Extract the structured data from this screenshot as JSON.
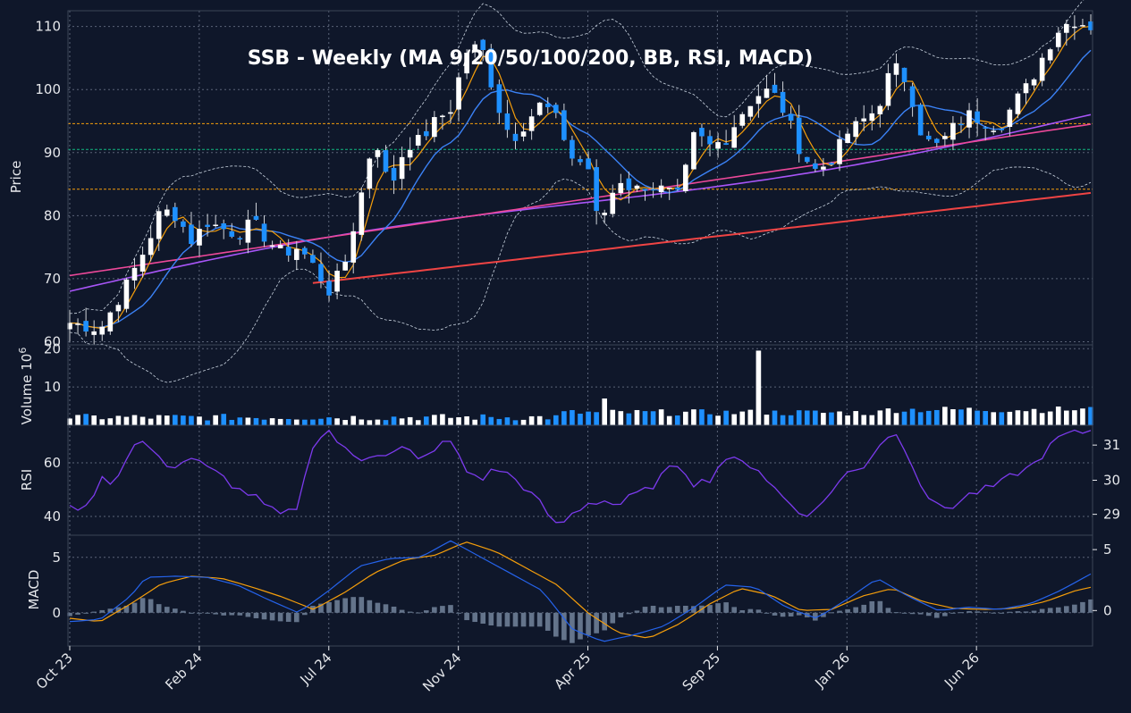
{
  "colors": {
    "background": "#0f172a",
    "frame": "#3b4457",
    "grid": "#5b6478",
    "up": "#ffffff",
    "down": "#1e90ff",
    "ma9": "#f59e0b",
    "ma20": "#3b82f6",
    "ma50": "#a855f7",
    "ma100": "#ec4899",
    "ma200": "#ef4444",
    "bb": "#cbd5e1",
    "rsi": "#7c3aed",
    "macd": "#2563eb",
    "signal": "#f59e0b",
    "hist": "#64748b",
    "hline_upper": "#f59e0b",
    "hline_mid": "#10b981",
    "hline_lower": "#f59e0b"
  },
  "chart_data": {
    "type": "candlestick",
    "title": "SSB  -  Weekly  (MA 9/20/50/100/200, BB, RSI, MACD)",
    "x_tick_labels": [
      "Oct 23",
      "Feb 24",
      "Jul 24",
      "Nov 24",
      "Apr 25",
      "Sep 25",
      "Jan 26",
      "Jun 26"
    ],
    "x_tick_index": [
      0,
      17,
      34,
      51,
      68,
      85,
      102,
      119
    ],
    "candle_count": 127,
    "price_panel": {
      "ylabel": "Price",
      "ylim": [
        59.5,
        112.5
      ],
      "yticks": [
        60,
        70,
        80,
        90,
        100,
        110
      ],
      "hlines": [
        94.6,
        90.5,
        84.2
      ],
      "ma_lines": [
        "MA 9",
        "MA 20",
        "MA 50",
        "MA 100",
        "MA 200"
      ],
      "close_anchors": [
        [
          0,
          63
        ],
        [
          4,
          62
        ],
        [
          7,
          68
        ],
        [
          10,
          75
        ],
        [
          12,
          81
        ],
        [
          14,
          80
        ],
        [
          16,
          76
        ],
        [
          18,
          79
        ],
        [
          20,
          78
        ],
        [
          22,
          77
        ],
        [
          24,
          79
        ],
        [
          26,
          76
        ],
        [
          28,
          74
        ],
        [
          30,
          75
        ],
        [
          32,
          72
        ],
        [
          34,
          68
        ],
        [
          36,
          72
        ],
        [
          38,
          82
        ],
        [
          40,
          93
        ],
        [
          42,
          84
        ],
        [
          44,
          91
        ],
        [
          46,
          92
        ],
        [
          48,
          95
        ],
        [
          50,
          97
        ],
        [
          52,
          106
        ],
        [
          54,
          107
        ],
        [
          56,
          98
        ],
        [
          58,
          92
        ],
        [
          60,
          95
        ],
        [
          62,
          98
        ],
        [
          64,
          95
        ],
        [
          66,
          89
        ],
        [
          68,
          88
        ],
        [
          69,
          80
        ],
        [
          70,
          80
        ],
        [
          72,
          86
        ],
        [
          74,
          84
        ],
        [
          76,
          85
        ],
        [
          78,
          84
        ],
        [
          80,
          83
        ],
        [
          82,
          93
        ],
        [
          84,
          91
        ],
        [
          86,
          92
        ],
        [
          88,
          96
        ],
        [
          90,
          99
        ],
        [
          92,
          100
        ],
        [
          94,
          96
        ],
        [
          96,
          90
        ],
        [
          98,
          87
        ],
        [
          100,
          89
        ],
        [
          102,
          93
        ],
        [
          104,
          95
        ],
        [
          106,
          97
        ],
        [
          108,
          104
        ],
        [
          110,
          101
        ],
        [
          112,
          92
        ],
        [
          114,
          91
        ],
        [
          116,
          94
        ],
        [
          118,
          96
        ],
        [
          120,
          95
        ],
        [
          122,
          94
        ],
        [
          124,
          98
        ],
        [
          126,
          101
        ],
        [
          128,
          106
        ],
        [
          130,
          110
        ],
        [
          132,
          111
        ],
        [
          134,
          110
        ]
      ]
    },
    "volume_panel": {
      "ylabel": "Volume  10^6",
      "ylim": [
        0,
        21
      ],
      "yticks": [
        10,
        20
      ],
      "spike": {
        "index": 90,
        "value": 19.5
      }
    },
    "rsi_panel": {
      "ylabel": "RSI",
      "ylim": [
        33,
        74
      ],
      "yticks": [
        40,
        60
      ],
      "right_yticks": [
        "29",
        "30",
        "31"
      ],
      "anchors": [
        [
          0,
          45
        ],
        [
          2,
          42
        ],
        [
          4,
          54
        ],
        [
          6,
          53
        ],
        [
          8,
          66
        ],
        [
          10,
          68
        ],
        [
          12,
          60
        ],
        [
          14,
          59
        ],
        [
          16,
          62
        ],
        [
          18,
          58
        ],
        [
          20,
          55
        ],
        [
          22,
          50
        ],
        [
          24,
          48
        ],
        [
          26,
          43
        ],
        [
          28,
          40
        ],
        [
          30,
          44
        ],
        [
          32,
          68
        ],
        [
          34,
          72
        ],
        [
          36,
          65
        ],
        [
          38,
          61
        ],
        [
          40,
          64
        ],
        [
          42,
          63
        ],
        [
          44,
          66
        ],
        [
          46,
          60
        ],
        [
          48,
          66
        ],
        [
          50,
          68
        ],
        [
          52,
          57
        ],
        [
          54,
          54
        ],
        [
          56,
          58
        ],
        [
          58,
          55
        ],
        [
          60,
          50
        ],
        [
          62,
          44
        ],
        [
          64,
          36
        ],
        [
          66,
          41
        ],
        [
          68,
          45
        ],
        [
          70,
          46
        ],
        [
          72,
          44
        ],
        [
          74,
          48
        ],
        [
          76,
          50
        ],
        [
          78,
          56
        ],
        [
          80,
          60
        ],
        [
          82,
          52
        ],
        [
          84,
          54
        ],
        [
          86,
          62
        ],
        [
          88,
          60
        ],
        [
          90,
          59
        ],
        [
          92,
          52
        ],
        [
          94,
          46
        ],
        [
          96,
          41
        ],
        [
          98,
          42
        ],
        [
          100,
          50
        ],
        [
          102,
          56
        ],
        [
          104,
          58
        ],
        [
          106,
          66
        ],
        [
          108,
          72
        ],
        [
          110,
          64
        ],
        [
          112,
          50
        ],
        [
          114,
          43
        ],
        [
          116,
          44
        ],
        [
          118,
          48
        ],
        [
          120,
          50
        ],
        [
          122,
          52
        ],
        [
          124,
          56
        ],
        [
          126,
          58
        ],
        [
          128,
          64
        ],
        [
          130,
          70
        ],
        [
          132,
          71
        ],
        [
          134,
          72
        ]
      ]
    },
    "macd_panel": {
      "ylabel": "MACD",
      "ylim": [
        -3,
        7
      ],
      "yticks": [
        0,
        5
      ],
      "right_yticks": [
        "0",
        "5"
      ],
      "macd_anchors": [
        [
          0,
          -0.8
        ],
        [
          4,
          -0.6
        ],
        [
          8,
          1.5
        ],
        [
          10,
          3.2
        ],
        [
          14,
          3.3
        ],
        [
          18,
          3.2
        ],
        [
          22,
          2.5
        ],
        [
          26,
          1.2
        ],
        [
          30,
          0
        ],
        [
          34,
          2
        ],
        [
          38,
          4.2
        ],
        [
          42,
          4.9
        ],
        [
          46,
          5.0
        ],
        [
          50,
          6.5
        ],
        [
          54,
          5.0
        ],
        [
          58,
          3.5
        ],
        [
          62,
          2.0
        ],
        [
          66,
          -1.5
        ],
        [
          70,
          -2.6
        ],
        [
          74,
          -2.0
        ],
        [
          78,
          -1.2
        ],
        [
          82,
          0.5
        ],
        [
          86,
          2.5
        ],
        [
          90,
          2.3
        ],
        [
          94,
          0.5
        ],
        [
          98,
          -0.5
        ],
        [
          102,
          1.2
        ],
        [
          106,
          3.1
        ],
        [
          110,
          1.5
        ],
        [
          114,
          0.2
        ],
        [
          118,
          0.5
        ],
        [
          122,
          0.3
        ],
        [
          126,
          0.8
        ],
        [
          130,
          2.0
        ],
        [
          134,
          3.5
        ]
      ],
      "signal_anchors": [
        [
          0,
          -0.5
        ],
        [
          4,
          -0.8
        ],
        [
          8,
          0.8
        ],
        [
          12,
          2.6
        ],
        [
          16,
          3.3
        ],
        [
          20,
          3.1
        ],
        [
          24,
          2.3
        ],
        [
          28,
          1.4
        ],
        [
          32,
          0.3
        ],
        [
          36,
          1.8
        ],
        [
          40,
          3.6
        ],
        [
          44,
          4.8
        ],
        [
          48,
          5.2
        ],
        [
          52,
          6.4
        ],
        [
          56,
          5.5
        ],
        [
          60,
          4.0
        ],
        [
          64,
          2.5
        ],
        [
          68,
          0
        ],
        [
          72,
          -1.8
        ],
        [
          76,
          -2.3
        ],
        [
          80,
          -1.0
        ],
        [
          84,
          0.8
        ],
        [
          88,
          2.2
        ],
        [
          92,
          1.6
        ],
        [
          96,
          0.2
        ],
        [
          100,
          0.3
        ],
        [
          104,
          1.5
        ],
        [
          108,
          2.2
        ],
        [
          112,
          1.0
        ],
        [
          116,
          0.4
        ],
        [
          120,
          0.3
        ],
        [
          124,
          0.4
        ],
        [
          128,
          1.0
        ],
        [
          132,
          2.0
        ],
        [
          134,
          2.3
        ]
      ]
    }
  }
}
